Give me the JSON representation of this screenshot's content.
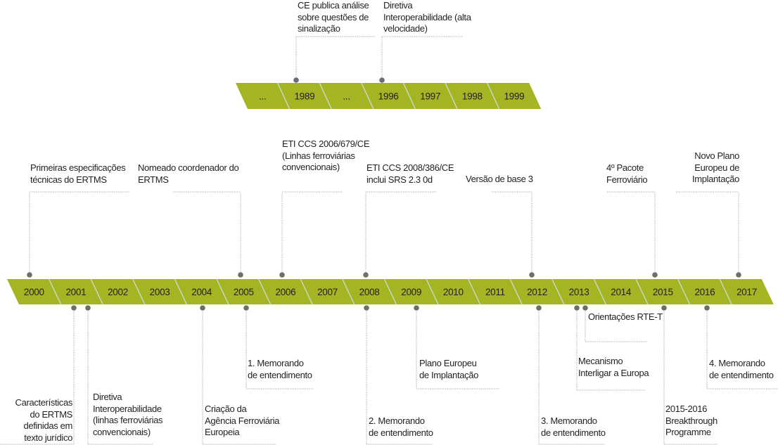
{
  "colors": {
    "bar": "#a5b422",
    "divider": "#cfe0e6",
    "dot": "#6d6e71",
    "leader": "#a7a9ac",
    "text": "#231f20"
  },
  "top_timeline": {
    "segments": [
      "...",
      "1989",
      "...",
      "1996",
      "1997",
      "1998",
      "1999"
    ],
    "events": [
      {
        "year": "1989",
        "text": "CE publica análise\nsobre questões de\nsinalização"
      },
      {
        "year": "1996",
        "text": "Diretiva\nInteroperabilidade (alta\nvelocidade)"
      }
    ]
  },
  "main_timeline": {
    "segments": [
      "2000",
      "2001",
      "2002",
      "2003",
      "2004",
      "2005",
      "2006",
      "2007",
      "2008",
      "2009",
      "2010",
      "2011",
      "2012",
      "2013",
      "2014",
      "2015",
      "2016",
      "2017"
    ],
    "events_above": [
      {
        "year": "2000",
        "text": "Primeiras especificações\ntécnicas do ERTMS"
      },
      {
        "year": "2005",
        "text": "Nomeado coordenador do\nERTMS"
      },
      {
        "year": "2006",
        "text": "ETI CCS 2006/679/CE\n(Linhas ferroviárias\nconvencionais)"
      },
      {
        "year": "2008",
        "text": "ETI CCS 2008/386/CE\ninclui SRS 2.3 0d"
      },
      {
        "year": "2012",
        "text": "Versão de base 3"
      },
      {
        "year": "2015",
        "text": "4º Pacote\nFerroviário"
      },
      {
        "year": "2017",
        "text": "Novo Plano\nEuropeu de\nImplantação"
      }
    ],
    "events_below": [
      {
        "year": "2001",
        "text": "Características\ndo ERTMS\ndefinidas em\ntexto jurídico"
      },
      {
        "year": "2001",
        "text": "Diretiva\nInteroperabilidade\n(linhas ferroviárias\nconvencionais)"
      },
      {
        "year": "2004",
        "text": "Criação da\nAgência Ferroviária\nEuropeia"
      },
      {
        "year": "2005",
        "text": "1. Memorando\nde entendimento"
      },
      {
        "year": "2008",
        "text": "2. Memorando\nde entendimento"
      },
      {
        "year": "2009",
        "text": "Plano Europeu\nde Implantação"
      },
      {
        "year": "2012",
        "text": "3. Memorando\nde entendimento"
      },
      {
        "year": "2013",
        "text": "Mecanismo\nInterligar a  Europa"
      },
      {
        "year": "2013",
        "text": "Orientações RTE-T"
      },
      {
        "year": "2015",
        "text": "2015-2016\nBreakthrough\nProgramme"
      },
      {
        "year": "2016",
        "text": "4. Memorando\nde entendimento"
      }
    ]
  }
}
